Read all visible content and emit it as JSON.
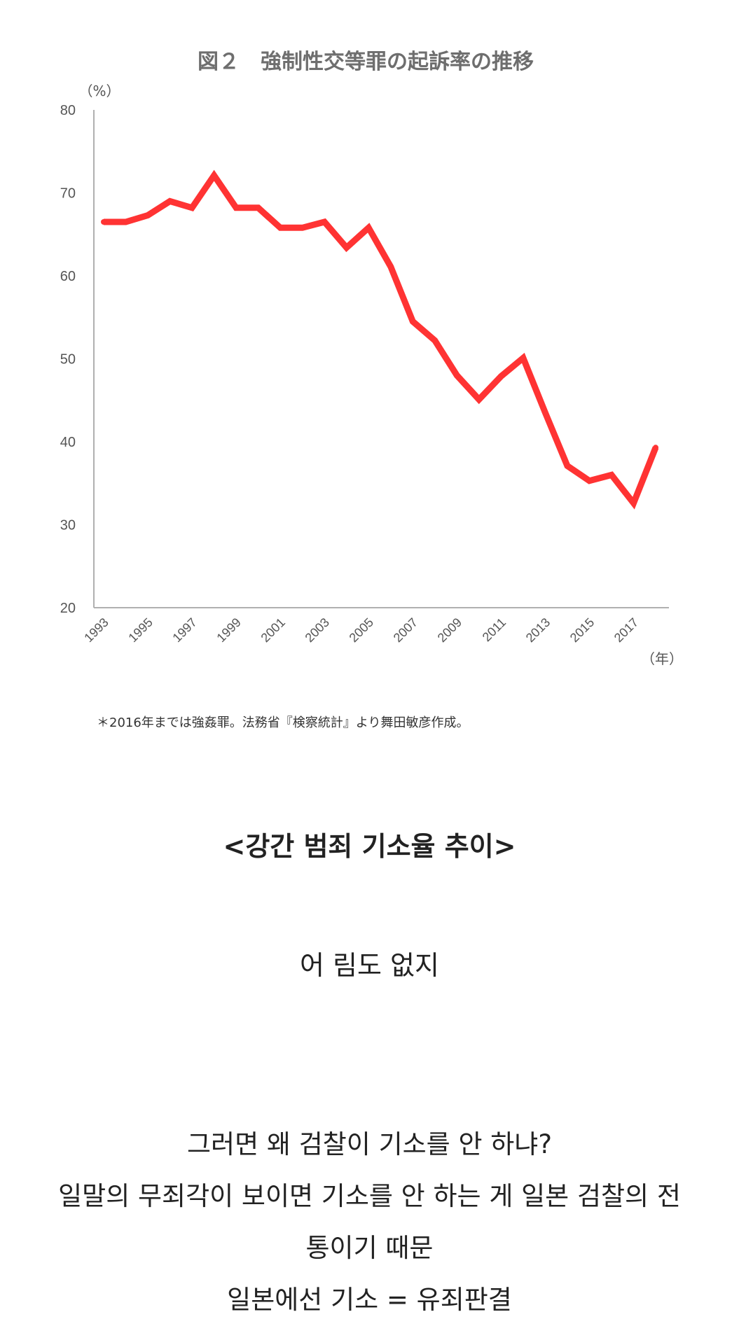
{
  "chart_data": {
    "type": "line",
    "title": "図２　強制性交等罪の起訴率の推移",
    "ylabel": "（%）",
    "xlabel": "（年）",
    "ylim": [
      20,
      80
    ],
    "yticks": [
      "20",
      "30",
      "40",
      "50",
      "60",
      "70",
      "80"
    ],
    "x_tick_labels": [
      "1993",
      "1995",
      "1997",
      "1999",
      "2001",
      "2003",
      "2005",
      "2007",
      "2009",
      "2011",
      "2013",
      "2015",
      "2017"
    ],
    "x": [
      1993,
      1994,
      1995,
      1996,
      1997,
      1998,
      1999,
      2000,
      2001,
      2002,
      2003,
      2004,
      2005,
      2006,
      2007,
      2008,
      2009,
      2010,
      2011,
      2012,
      2013,
      2014,
      2015,
      2016,
      2017,
      2018
    ],
    "series": [
      {
        "color": "#ff3333",
        "values": [
          66.5,
          66.5,
          67.3,
          69.0,
          68.2,
          72.1,
          68.2,
          68.2,
          65.8,
          65.8,
          66.5,
          63.4,
          65.8,
          61.1,
          54.5,
          52.2,
          48.0,
          45.1,
          47.9,
          50.1,
          43.5,
          37.1,
          35.3,
          36.0,
          32.6,
          39.3
        ]
      }
    ],
    "note": "＊2016年までは強姦罪。法務省『検察統計』より舞田敏彦作成。",
    "grid": false,
    "legend": "none"
  },
  "text": {
    "heading": "<강간 범죄 기소율 추이>",
    "line1": "어 림도 없지",
    "para": [
      "그러면 왜 검찰이 기소를 안 하냐?",
      "일말의 무죄각이 보이면 기소를 안 하는 게 일본 검찰의 전",
      "통이기 때문",
      "일본에선 기소 = 유죄판결"
    ]
  }
}
